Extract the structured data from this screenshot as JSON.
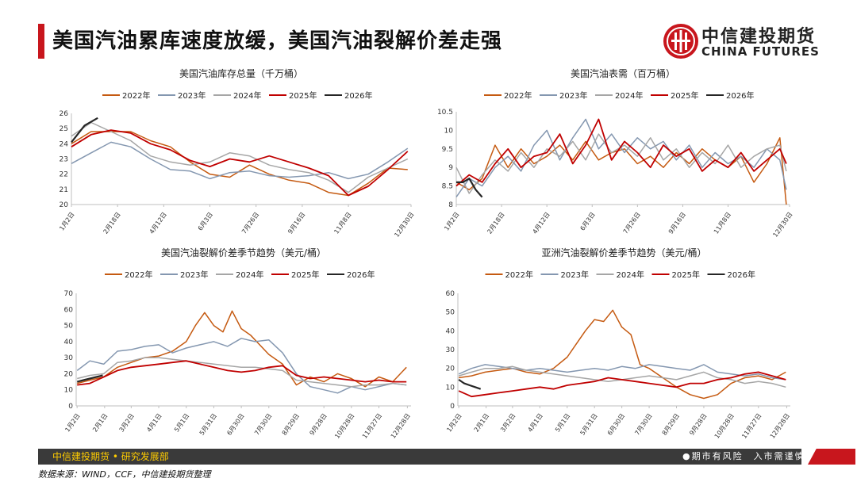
{
  "page": {
    "title": "美国汽油累库速度放缓，美国汽油裂解价差走强",
    "logo_cn": "中信建投期货",
    "logo_en": "CHINA FUTURES",
    "footer_left": "中信建投期货 • 研究发展部",
    "footer_right": "●期市有风险　入市需谨慎",
    "source": "数据来源：WIND，CCF，中信建投期货整理"
  },
  "colors": {
    "2022年": "#c55a11",
    "2023年": "#8497b0",
    "2024年": "#a6a6a6",
    "2025年": "#c00000",
    "2026年": "#262626",
    "accent": "#c8161d"
  },
  "chart_data": [
    {
      "type": "line",
      "title": "美国汽油库存总量（千万桶）",
      "legend": [
        "2022年",
        "2023年",
        "2024年",
        "2025年",
        "2026年"
      ],
      "legend_placement": "top",
      "ylim": [
        20,
        26
      ],
      "yticks": [
        20,
        21,
        22,
        23,
        24,
        25,
        26
      ],
      "xticks": [
        "1月2日",
        "2月18日",
        "4月12日",
        "6月3日",
        "7月26日",
        "9月16日",
        "11月8日",
        "12月30日"
      ],
      "xticks_week": [
        0,
        7,
        14,
        21,
        28,
        35,
        42,
        51.5
      ],
      "x_unit": "week",
      "series": [
        {
          "name": "2022年",
          "x": [
            0,
            3,
            6,
            9,
            12,
            15,
            18,
            21,
            24,
            27,
            30,
            33,
            36,
            39,
            42,
            45,
            48,
            51
          ],
          "values": [
            24.0,
            24.8,
            24.8,
            24.8,
            24.2,
            23.8,
            22.8,
            22.0,
            21.8,
            22.6,
            22.0,
            21.6,
            21.4,
            20.8,
            20.6,
            21.4,
            22.4,
            22.3
          ]
        },
        {
          "name": "2023年",
          "x": [
            0,
            3,
            6,
            9,
            12,
            15,
            18,
            21,
            24,
            27,
            30,
            33,
            36,
            39,
            42,
            45,
            48,
            51
          ],
          "values": [
            22.7,
            23.4,
            24.1,
            23.8,
            23.0,
            22.3,
            22.2,
            21.7,
            22.1,
            22.2,
            21.9,
            21.8,
            21.9,
            22.1,
            21.7,
            22.0,
            22.8,
            23.7
          ]
        },
        {
          "name": "2024年",
          "x": [
            0,
            3,
            6,
            9,
            12,
            15,
            18,
            21,
            24,
            27,
            30,
            33,
            36,
            39,
            42,
            45,
            48,
            51
          ],
          "values": [
            24.5,
            25.4,
            24.8,
            24.2,
            23.2,
            22.8,
            22.6,
            22.8,
            23.4,
            23.2,
            22.6,
            22.3,
            22.1,
            21.6,
            20.8,
            21.8,
            22.4,
            23.0
          ]
        },
        {
          "name": "2025年",
          "x": [
            0,
            3,
            6,
            9,
            12,
            15,
            18,
            21,
            24,
            27,
            30,
            33,
            36,
            39,
            42,
            45,
            48,
            51
          ],
          "values": [
            23.8,
            24.6,
            24.9,
            24.7,
            24.0,
            23.6,
            22.9,
            22.5,
            23.0,
            22.8,
            23.2,
            22.8,
            22.4,
            21.9,
            20.6,
            21.2,
            22.3,
            23.5
          ]
        },
        {
          "name": "2026年",
          "x": [
            0,
            2,
            4
          ],
          "values": [
            24.1,
            25.2,
            25.7
          ]
        }
      ]
    },
    {
      "type": "line",
      "title": "美国汽油表需（百万桶）",
      "legend": [
        "2022年",
        "2023年",
        "2024年",
        "2025年",
        "2026年"
      ],
      "legend_placement": "top",
      "ylim": [
        8,
        10.5
      ],
      "yticks": [
        8,
        8.5,
        9,
        9.5,
        10,
        10.5
      ],
      "xticks": [
        "1月2日",
        "2月18日",
        "4月12日",
        "6月3日",
        "7月26日",
        "9月16日",
        "11月8日",
        "12月30日"
      ],
      "xticks_week": [
        0,
        7,
        14,
        21,
        28,
        35,
        42,
        51.5
      ],
      "x_unit": "week",
      "series": [
        {
          "name": "2022年",
          "x": [
            0,
            2,
            4,
            6,
            8,
            10,
            12,
            14,
            16,
            18,
            20,
            22,
            24,
            26,
            28,
            30,
            32,
            34,
            36,
            38,
            40,
            42,
            44,
            46,
            48,
            50,
            51
          ],
          "values": [
            8.6,
            8.4,
            8.7,
            9.6,
            9.0,
            9.5,
            9.1,
            9.3,
            9.6,
            9.2,
            9.7,
            9.2,
            9.4,
            9.5,
            9.1,
            9.3,
            9.0,
            9.4,
            9.1,
            9.5,
            9.2,
            9.0,
            9.3,
            8.6,
            9.1,
            9.8,
            8.0
          ]
        },
        {
          "name": "2023年",
          "x": [
            0,
            2,
            4,
            6,
            8,
            10,
            12,
            14,
            16,
            18,
            20,
            22,
            24,
            26,
            28,
            30,
            32,
            34,
            36,
            38,
            40,
            42,
            44,
            46,
            48,
            50,
            51
          ],
          "values": [
            8.2,
            8.7,
            8.5,
            9.0,
            9.3,
            8.9,
            9.6,
            10.0,
            9.2,
            9.8,
            10.3,
            9.5,
            9.9,
            9.4,
            9.8,
            9.5,
            9.7,
            9.2,
            9.6,
            9.0,
            9.4,
            9.1,
            9.3,
            9.0,
            9.5,
            9.2,
            8.4
          ]
        },
        {
          "name": "2024年",
          "x": [
            0,
            2,
            4,
            6,
            8,
            10,
            12,
            14,
            16,
            18,
            20,
            22,
            24,
            26,
            28,
            30,
            32,
            34,
            36,
            38,
            40,
            42,
            44,
            46,
            48,
            50,
            51
          ],
          "values": [
            9.0,
            8.3,
            8.8,
            9.2,
            8.9,
            9.4,
            9.0,
            9.5,
            9.3,
            9.7,
            9.2,
            9.9,
            9.4,
            9.6,
            9.3,
            9.8,
            9.2,
            9.5,
            9.0,
            9.4,
            9.1,
            9.6,
            9.0,
            9.3,
            9.5,
            9.6,
            8.9
          ]
        },
        {
          "name": "2025年",
          "x": [
            0,
            2,
            4,
            6,
            8,
            10,
            12,
            14,
            16,
            18,
            20,
            22,
            24,
            26,
            28,
            30,
            32,
            34,
            36,
            38,
            40,
            42,
            44,
            46,
            48,
            50,
            51
          ],
          "values": [
            8.5,
            8.8,
            8.6,
            9.1,
            9.5,
            9.0,
            9.3,
            9.4,
            9.9,
            9.1,
            9.6,
            10.3,
            9.2,
            9.7,
            9.4,
            9.0,
            9.6,
            9.3,
            9.5,
            8.9,
            9.2,
            9.0,
            9.4,
            8.9,
            9.2,
            9.5,
            9.1
          ]
        },
        {
          "name": "2026年",
          "x": [
            0,
            1,
            2,
            3,
            4
          ],
          "values": [
            8.6,
            8.6,
            8.7,
            8.4,
            8.2
          ]
        }
      ]
    },
    {
      "type": "line",
      "title": "美国汽油裂解价差季节趋势（美元/桶）",
      "legend": [
        "2022年",
        "2023年",
        "2024年",
        "2025年",
        "2026年"
      ],
      "legend_placement": "top",
      "ylim": [
        0,
        70
      ],
      "yticks": [
        0,
        10,
        20,
        30,
        40,
        50,
        60,
        70
      ],
      "xticks": [
        "1月2日",
        "2月1日",
        "3月2日",
        "4月1日",
        "5月1日",
        "5月31日",
        "6月30日",
        "7月30日",
        "8月29日",
        "9月28日",
        "10月28日",
        "11月27日",
        "12月28日"
      ],
      "xticks_day": [
        1,
        31,
        60,
        90,
        120,
        150,
        180,
        210,
        240,
        270,
        300,
        330,
        361
      ],
      "x_unit": "day_of_year",
      "series": [
        {
          "name": "2022年",
          "x": [
            1,
            15,
            30,
            45,
            60,
            75,
            90,
            105,
            120,
            130,
            140,
            150,
            160,
            170,
            180,
            190,
            200,
            210,
            225,
            240,
            255,
            270,
            285,
            300,
            315,
            330,
            345,
            360
          ],
          "values": [
            14,
            16,
            18,
            24,
            27,
            30,
            31,
            34,
            40,
            50,
            58,
            50,
            46,
            59,
            48,
            44,
            38,
            32,
            26,
            13,
            18,
            15,
            20,
            17,
            12,
            18,
            15,
            24
          ]
        },
        {
          "name": "2023年",
          "x": [
            1,
            15,
            30,
            45,
            60,
            75,
            90,
            105,
            120,
            135,
            150,
            165,
            180,
            195,
            210,
            225,
            240,
            255,
            270,
            285,
            300,
            315,
            330,
            345,
            360
          ],
          "values": [
            22,
            28,
            26,
            34,
            35,
            37,
            38,
            33,
            36,
            38,
            40,
            37,
            42,
            40,
            41,
            33,
            20,
            12,
            10,
            8,
            12,
            10,
            12,
            14,
            13
          ]
        },
        {
          "name": "2024年",
          "x": [
            1,
            15,
            30,
            45,
            60,
            75,
            90,
            105,
            120,
            135,
            150,
            165,
            180,
            195,
            210,
            225,
            240,
            255,
            270,
            285,
            300,
            315,
            330,
            345,
            360
          ],
          "values": [
            17,
            19,
            20,
            27,
            28,
            30,
            30,
            29,
            28,
            27,
            26,
            25,
            24,
            24,
            23,
            22,
            16,
            15,
            14,
            13,
            12,
            13,
            13,
            14,
            13
          ]
        },
        {
          "name": "2025年",
          "x": [
            1,
            15,
            30,
            45,
            60,
            75,
            90,
            105,
            120,
            135,
            150,
            165,
            180,
            195,
            210,
            225,
            240,
            255,
            270,
            285,
            300,
            315,
            330,
            345,
            360
          ],
          "values": [
            13,
            14,
            18,
            22,
            24,
            25,
            26,
            27,
            28,
            26,
            24,
            22,
            21,
            22,
            24,
            25,
            19,
            17,
            18,
            17,
            16,
            15,
            16,
            15,
            15
          ]
        },
        {
          "name": "2026年",
          "x": [
            1,
            8,
            15,
            22,
            29
          ],
          "values": [
            15,
            16,
            17,
            18,
            19
          ]
        }
      ]
    },
    {
      "type": "line",
      "title": "亚洲汽油裂解价差季节趋势（美元/桶）",
      "legend": [
        "2022年",
        "2023年",
        "2024年",
        "2025年",
        "2026年"
      ],
      "legend_placement": "top",
      "ylim": [
        0,
        60
      ],
      "yticks": [
        0,
        10,
        20,
        30,
        40,
        50,
        60
      ],
      "xticks": [
        "1月2日",
        "2月1日",
        "3月2日",
        "4月1日",
        "5月1日",
        "5月31日",
        "6月30日",
        "7月30日",
        "8月29日",
        "9月28日",
        "10月28日",
        "11月27日",
        "12月28日"
      ],
      "xticks_day": [
        1,
        31,
        60,
        90,
        120,
        150,
        180,
        210,
        240,
        270,
        300,
        330,
        361
      ],
      "x_unit": "day_of_year",
      "series": [
        {
          "name": "2022年",
          "x": [
            1,
            15,
            30,
            45,
            60,
            75,
            90,
            105,
            120,
            130,
            140,
            150,
            160,
            170,
            180,
            190,
            200,
            210,
            225,
            240,
            255,
            270,
            285,
            300,
            315,
            330,
            345,
            360
          ],
          "values": [
            15,
            16,
            18,
            19,
            20,
            18,
            17,
            20,
            26,
            33,
            40,
            46,
            45,
            51,
            42,
            38,
            22,
            20,
            15,
            10,
            6,
            4,
            6,
            12,
            15,
            16,
            14,
            18
          ]
        },
        {
          "name": "2023年",
          "x": [
            1,
            15,
            30,
            45,
            60,
            75,
            90,
            105,
            120,
            135,
            150,
            165,
            180,
            195,
            210,
            225,
            240,
            255,
            270,
            285,
            300,
            315,
            330,
            345,
            360
          ],
          "values": [
            17,
            20,
            22,
            21,
            20,
            19,
            20,
            19,
            18,
            19,
            20,
            19,
            21,
            20,
            22,
            21,
            20,
            19,
            22,
            18,
            17,
            16,
            17,
            15,
            14
          ]
        },
        {
          "name": "2024年",
          "x": [
            1,
            15,
            30,
            45,
            60,
            75,
            90,
            105,
            120,
            135,
            150,
            165,
            180,
            195,
            210,
            225,
            240,
            255,
            270,
            285,
            300,
            315,
            330,
            345,
            360
          ],
          "values": [
            16,
            18,
            20,
            20,
            21,
            19,
            18,
            17,
            16,
            15,
            14,
            13,
            14,
            15,
            16,
            15,
            14,
            16,
            18,
            15,
            14,
            12,
            13,
            12,
            10
          ]
        },
        {
          "name": "2025年",
          "x": [
            1,
            15,
            30,
            45,
            60,
            75,
            90,
            105,
            120,
            135,
            150,
            165,
            180,
            195,
            210,
            225,
            240,
            255,
            270,
            285,
            300,
            315,
            330,
            345,
            360
          ],
          "values": [
            8,
            5,
            6,
            7,
            8,
            9,
            10,
            9,
            11,
            12,
            13,
            15,
            14,
            13,
            12,
            11,
            10,
            12,
            12,
            14,
            15,
            17,
            18,
            16,
            14
          ]
        },
        {
          "name": "2026年",
          "x": [
            1,
            7,
            13,
            19,
            25
          ],
          "values": [
            14,
            12,
            11,
            10,
            9
          ]
        }
      ]
    }
  ]
}
